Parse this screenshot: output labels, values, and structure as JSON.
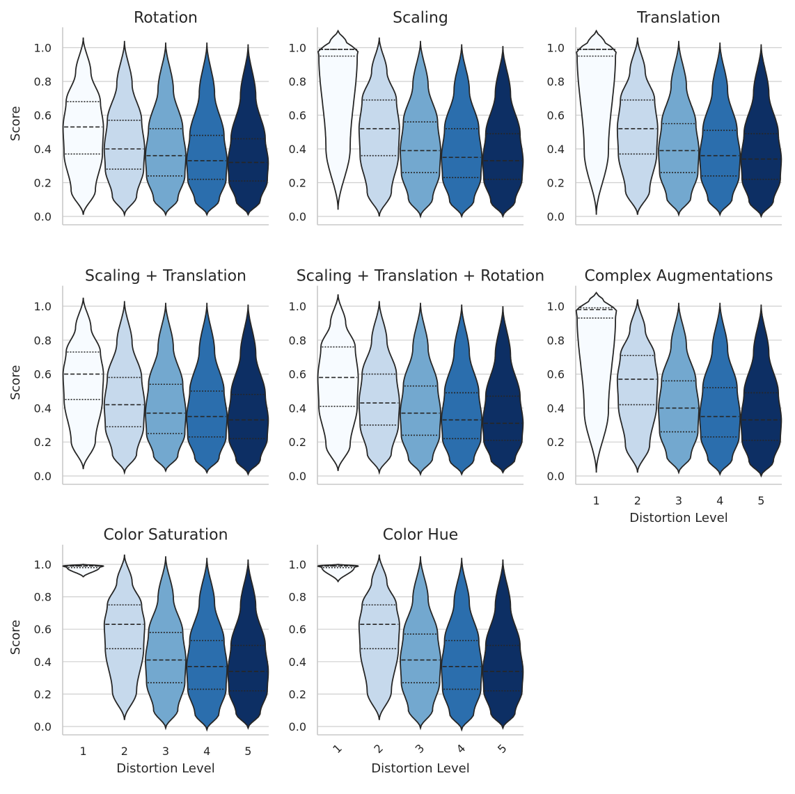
{
  "chart_data": {
    "type": "violin",
    "figure": "grid of violin plots",
    "xlabel": "Distortion Level",
    "ylabel": "Score",
    "ylim": [
      0,
      1.1
    ],
    "yticks": [
      0.0,
      0.2,
      0.4,
      0.6,
      0.8,
      1.0
    ],
    "ytick_labels": [
      "0.0",
      "0.2",
      "0.4",
      "0.6",
      "0.8",
      "1.0"
    ],
    "categories": [
      "1",
      "2",
      "3",
      "4",
      "5"
    ],
    "palette": [
      "#f7fbff",
      "#c6d9ec",
      "#73a8cf",
      "#2b6ead",
      "#0d2f64"
    ],
    "inner": "quartile",
    "panels": [
      {
        "title": "Rotation",
        "series": [
          {
            "level": "1",
            "q1": 0.37,
            "median": 0.53,
            "q3": 0.68,
            "min": 0.01,
            "max": 1.06
          },
          {
            "level": "2",
            "q1": 0.28,
            "median": 0.4,
            "q3": 0.57,
            "min": 0.01,
            "max": 1.04
          },
          {
            "level": "3",
            "q1": 0.24,
            "median": 0.36,
            "q3": 0.52,
            "min": 0.01,
            "max": 1.03
          },
          {
            "level": "4",
            "q1": 0.22,
            "median": 0.33,
            "q3": 0.48,
            "min": 0.01,
            "max": 1.03
          },
          {
            "level": "5",
            "q1": 0.21,
            "median": 0.32,
            "q3": 0.46,
            "min": 0.01,
            "max": 1.02
          }
        ]
      },
      {
        "title": "Scaling",
        "series": [
          {
            "level": "1",
            "q1": 0.95,
            "median": 0.99,
            "q3": 0.99,
            "min": 0.04,
            "max": 1.1
          },
          {
            "level": "2",
            "q1": 0.36,
            "median": 0.52,
            "q3": 0.69,
            "min": 0.0,
            "max": 1.06
          },
          {
            "level": "3",
            "q1": 0.26,
            "median": 0.39,
            "q3": 0.56,
            "min": 0.0,
            "max": 1.04
          },
          {
            "level": "4",
            "q1": 0.23,
            "median": 0.35,
            "q3": 0.52,
            "min": 0.0,
            "max": 1.02
          },
          {
            "level": "5",
            "q1": 0.22,
            "median": 0.33,
            "q3": 0.49,
            "min": 0.0,
            "max": 1.01
          }
        ]
      },
      {
        "title": "Translation",
        "series": [
          {
            "level": "1",
            "q1": 0.95,
            "median": 0.99,
            "q3": 0.99,
            "min": 0.01,
            "max": 1.1
          },
          {
            "level": "2",
            "q1": 0.37,
            "median": 0.52,
            "q3": 0.69,
            "min": 0.01,
            "max": 1.06
          },
          {
            "level": "3",
            "q1": 0.26,
            "median": 0.39,
            "q3": 0.55,
            "min": 0.01,
            "max": 1.04
          },
          {
            "level": "4",
            "q1": 0.24,
            "median": 0.36,
            "q3": 0.51,
            "min": 0.01,
            "max": 1.03
          },
          {
            "level": "5",
            "q1": 0.22,
            "median": 0.34,
            "q3": 0.49,
            "min": 0.0,
            "max": 1.02
          }
        ]
      },
      {
        "title": "Scaling + Translation",
        "series": [
          {
            "level": "1",
            "q1": 0.45,
            "median": 0.6,
            "q3": 0.73,
            "min": 0.04,
            "max": 1.05
          },
          {
            "level": "2",
            "q1": 0.29,
            "median": 0.42,
            "q3": 0.58,
            "min": 0.02,
            "max": 1.03
          },
          {
            "level": "3",
            "q1": 0.25,
            "median": 0.37,
            "q3": 0.54,
            "min": 0.03,
            "max": 1.02
          },
          {
            "level": "4",
            "q1": 0.23,
            "median": 0.35,
            "q3": 0.5,
            "min": 0.02,
            "max": 1.02
          },
          {
            "level": "5",
            "q1": 0.22,
            "median": 0.33,
            "q3": 0.48,
            "min": 0.01,
            "max": 1.01
          }
        ]
      },
      {
        "title": "Scaling + Translation + Rotation",
        "series": [
          {
            "level": "1",
            "q1": 0.41,
            "median": 0.58,
            "q3": 0.76,
            "min": 0.03,
            "max": 1.07
          },
          {
            "level": "2",
            "q1": 0.3,
            "median": 0.43,
            "q3": 0.6,
            "min": 0.02,
            "max": 1.03
          },
          {
            "level": "3",
            "q1": 0.24,
            "median": 0.37,
            "q3": 0.53,
            "min": 0.01,
            "max": 1.02
          },
          {
            "level": "4",
            "q1": 0.22,
            "median": 0.33,
            "q3": 0.49,
            "min": 0.01,
            "max": 1.01
          },
          {
            "level": "5",
            "q1": 0.21,
            "median": 0.31,
            "q3": 0.47,
            "min": 0.02,
            "max": 1.0
          }
        ]
      },
      {
        "title": "Complex Augmentations",
        "series": [
          {
            "level": "1",
            "q1": 0.93,
            "median": 0.98,
            "q3": 0.99,
            "min": 0.02,
            "max": 1.08
          },
          {
            "level": "2",
            "q1": 0.42,
            "median": 0.57,
            "q3": 0.71,
            "min": 0.02,
            "max": 1.04
          },
          {
            "level": "3",
            "q1": 0.26,
            "median": 0.4,
            "q3": 0.56,
            "min": 0.02,
            "max": 1.02
          },
          {
            "level": "4",
            "q1": 0.23,
            "median": 0.35,
            "q3": 0.52,
            "min": 0.01,
            "max": 1.02
          },
          {
            "level": "5",
            "q1": 0.21,
            "median": 0.33,
            "q3": 0.49,
            "min": 0.0,
            "max": 1.01
          }
        ]
      },
      {
        "title": "Color Saturation",
        "series": [
          {
            "level": "1",
            "q1": 0.98,
            "median": 0.99,
            "q3": 0.99,
            "min": 0.92,
            "max": 1.0
          },
          {
            "level": "2",
            "q1": 0.48,
            "median": 0.63,
            "q3": 0.75,
            "min": 0.04,
            "max": 1.06
          },
          {
            "level": "3",
            "q1": 0.27,
            "median": 0.41,
            "q3": 0.58,
            "min": -0.01,
            "max": 1.05
          },
          {
            "level": "4",
            "q1": 0.23,
            "median": 0.37,
            "q3": 0.53,
            "min": -0.02,
            "max": 1.04
          },
          {
            "level": "5",
            "q1": 0.22,
            "median": 0.34,
            "q3": 0.5,
            "min": -0.01,
            "max": 1.03
          }
        ]
      },
      {
        "title": "Color Hue",
        "series": [
          {
            "level": "1",
            "q1": 0.98,
            "median": 0.99,
            "q3": 0.99,
            "min": 0.89,
            "max": 1.0
          },
          {
            "level": "2",
            "q1": 0.48,
            "median": 0.63,
            "q3": 0.75,
            "min": 0.04,
            "max": 1.06
          },
          {
            "level": "3",
            "q1": 0.27,
            "median": 0.41,
            "q3": 0.57,
            "min": -0.01,
            "max": 1.05
          },
          {
            "level": "4",
            "q1": 0.23,
            "median": 0.37,
            "q3": 0.53,
            "min": -0.02,
            "max": 1.04
          },
          {
            "level": "5",
            "q1": 0.22,
            "median": 0.34,
            "q3": 0.5,
            "min": -0.01,
            "max": 1.03
          }
        ]
      }
    ]
  }
}
